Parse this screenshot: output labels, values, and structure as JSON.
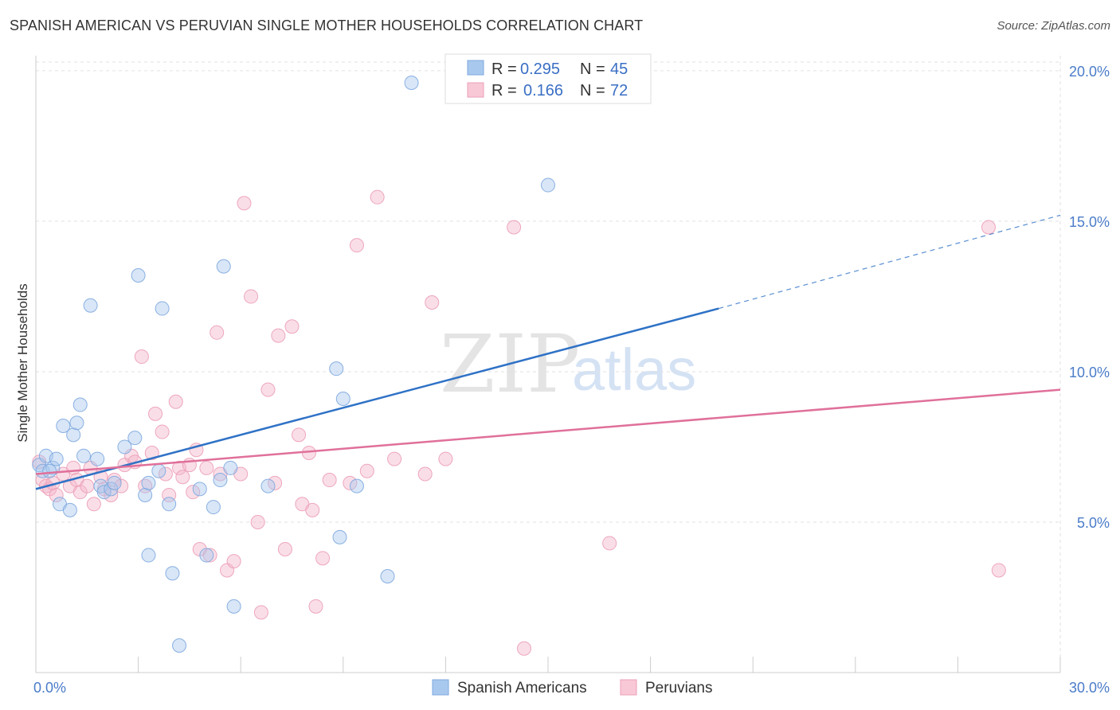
{
  "title": "SPANISH AMERICAN VS PERUVIAN SINGLE MOTHER HOUSEHOLDS CORRELATION CHART",
  "source": "Source: ZipAtlas.com",
  "watermark": {
    "zip": "ZIP",
    "atlas": "atlas"
  },
  "legend": {
    "r_label": "R =",
    "n_label": "N =",
    "items": [
      {
        "r": "0.295",
        "n": "45"
      },
      {
        "r": "0.166",
        "n": "72"
      }
    ]
  },
  "chart_data": {
    "type": "scatter",
    "title": "SPANISH AMERICAN VS PERUVIAN SINGLE MOTHER HOUSEHOLDS CORRELATION CHART",
    "ylabel": "Single Mother Households",
    "xlim": [
      0,
      30
    ],
    "ylim": [
      0,
      20.5
    ],
    "x_tick_labels": [
      "0.0%",
      "30.0%"
    ],
    "y_ticks": [
      5,
      10,
      15,
      20
    ],
    "y_tick_labels": [
      "5.0%",
      "10.0%",
      "15.0%",
      "20.0%"
    ],
    "grid": true,
    "legend_position": "top-center",
    "series": [
      {
        "name": "Spanish Americans",
        "color": "#a9c8ee",
        "line_color": "#2f72c6",
        "trend": {
          "x0": 0,
          "y0": 6.1,
          "x1": 20,
          "y1": 12.1,
          "dashed_to_x": 30,
          "dashed_to_y": 15.2
        },
        "points": [
          [
            0.1,
            6.9
          ],
          [
            0.2,
            6.7
          ],
          [
            0.3,
            7.2
          ],
          [
            0.5,
            6.8
          ],
          [
            0.6,
            7.1
          ],
          [
            0.7,
            5.6
          ],
          [
            0.8,
            8.2
          ],
          [
            1.0,
            5.4
          ],
          [
            1.1,
            7.9
          ],
          [
            1.2,
            8.3
          ],
          [
            1.3,
            8.9
          ],
          [
            1.4,
            7.2
          ],
          [
            1.6,
            12.2
          ],
          [
            1.8,
            7.1
          ],
          [
            1.9,
            6.2
          ],
          [
            2.0,
            6.0
          ],
          [
            2.2,
            6.1
          ],
          [
            2.3,
            6.3
          ],
          [
            2.6,
            7.5
          ],
          [
            2.9,
            7.8
          ],
          [
            3.0,
            13.2
          ],
          [
            3.2,
            5.9
          ],
          [
            3.3,
            6.3
          ],
          [
            3.3,
            3.9
          ],
          [
            3.6,
            6.7
          ],
          [
            3.7,
            12.1
          ],
          [
            3.9,
            5.6
          ],
          [
            4.0,
            3.3
          ],
          [
            4.2,
            0.9
          ],
          [
            4.8,
            6.1
          ],
          [
            5.0,
            3.9
          ],
          [
            5.2,
            5.5
          ],
          [
            5.4,
            6.4
          ],
          [
            5.5,
            13.5
          ],
          [
            5.7,
            6.8
          ],
          [
            5.8,
            2.2
          ],
          [
            6.8,
            6.2
          ],
          [
            8.8,
            10.1
          ],
          [
            8.9,
            4.5
          ],
          [
            9.0,
            9.1
          ],
          [
            9.4,
            6.2
          ],
          [
            10.3,
            3.2
          ],
          [
            11.0,
            19.6
          ],
          [
            15.0,
            16.2
          ],
          [
            0.4,
            6.7
          ]
        ]
      },
      {
        "name": "Peruvians",
        "color": "#f5b6c9",
        "line_color": "#e0709a",
        "trend": {
          "x0": 0,
          "y0": 6.6,
          "x1": 30,
          "y1": 9.4
        },
        "points": [
          [
            0.1,
            7.0
          ],
          [
            0.2,
            6.4
          ],
          [
            0.3,
            6.2
          ],
          [
            0.4,
            6.1
          ],
          [
            0.5,
            6.3
          ],
          [
            0.6,
            5.9
          ],
          [
            0.8,
            6.6
          ],
          [
            1.0,
            6.2
          ],
          [
            1.1,
            6.8
          ],
          [
            1.2,
            6.4
          ],
          [
            1.3,
            6.0
          ],
          [
            1.5,
            6.2
          ],
          [
            1.6,
            6.8
          ],
          [
            1.7,
            5.6
          ],
          [
            1.9,
            6.5
          ],
          [
            2.0,
            6.1
          ],
          [
            2.2,
            5.9
          ],
          [
            2.3,
            6.4
          ],
          [
            2.5,
            6.2
          ],
          [
            2.6,
            6.9
          ],
          [
            2.8,
            7.2
          ],
          [
            2.9,
            7.0
          ],
          [
            3.1,
            10.5
          ],
          [
            3.2,
            6.2
          ],
          [
            3.4,
            7.3
          ],
          [
            3.5,
            8.6
          ],
          [
            3.7,
            8.0
          ],
          [
            3.8,
            6.6
          ],
          [
            3.9,
            5.9
          ],
          [
            4.1,
            9.0
          ],
          [
            4.2,
            6.8
          ],
          [
            4.3,
            6.5
          ],
          [
            4.5,
            6.9
          ],
          [
            4.6,
            6.0
          ],
          [
            4.7,
            7.4
          ],
          [
            4.8,
            4.1
          ],
          [
            5.0,
            6.8
          ],
          [
            5.1,
            3.9
          ],
          [
            5.3,
            11.3
          ],
          [
            5.4,
            6.6
          ],
          [
            5.6,
            3.4
          ],
          [
            5.8,
            3.7
          ],
          [
            6.0,
            6.6
          ],
          [
            6.1,
            15.6
          ],
          [
            6.3,
            12.5
          ],
          [
            6.5,
            5.0
          ],
          [
            6.6,
            2.0
          ],
          [
            6.8,
            9.4
          ],
          [
            7.0,
            6.3
          ],
          [
            7.1,
            11.2
          ],
          [
            7.3,
            4.1
          ],
          [
            7.5,
            11.5
          ],
          [
            7.7,
            7.9
          ],
          [
            7.8,
            5.6
          ],
          [
            8.0,
            7.3
          ],
          [
            8.2,
            2.2
          ],
          [
            8.4,
            3.8
          ],
          [
            8.6,
            6.4
          ],
          [
            9.2,
            6.3
          ],
          [
            9.4,
            14.2
          ],
          [
            9.7,
            6.7
          ],
          [
            10.0,
            15.8
          ],
          [
            10.5,
            7.1
          ],
          [
            11.4,
            6.6
          ],
          [
            11.6,
            12.3
          ],
          [
            12.0,
            7.1
          ],
          [
            14.0,
            14.8
          ],
          [
            14.3,
            0.8
          ],
          [
            16.8,
            4.3
          ],
          [
            27.9,
            14.8
          ],
          [
            28.2,
            3.4
          ],
          [
            8.1,
            5.4
          ]
        ]
      }
    ]
  }
}
